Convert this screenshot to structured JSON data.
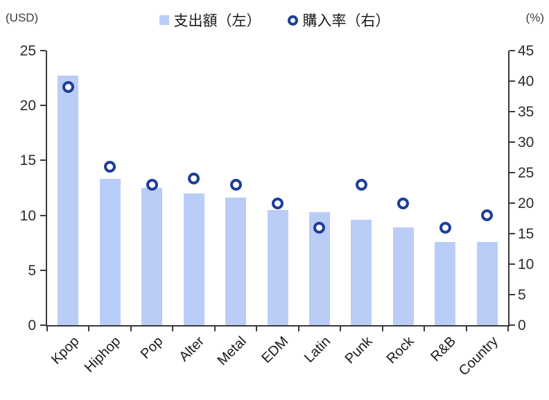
{
  "units": {
    "left": "(USD)",
    "right": "(%)"
  },
  "legend": [
    {
      "label": "支出額（左）",
      "marker": "bar-square"
    },
    {
      "label": "購入率（右）",
      "marker": "rate-ring"
    }
  ],
  "colors": {
    "bar": "#B9CDF7",
    "ring": "#1F3D99",
    "axis": "#3a3a3a",
    "text": "#2b2b2b"
  },
  "chart_data": {
    "type": "bar",
    "subtype": "combo-bar-scatter-dual-axis",
    "categories": [
      "Kpop",
      "Hiphop",
      "Pop",
      "Alter",
      "Metal",
      "EDM",
      "Latin",
      "Punk",
      "Rock",
      "R&B",
      "Country"
    ],
    "series": [
      {
        "name": "支出額（左）",
        "type": "bar",
        "axis": "left",
        "values": [
          22.7,
          13.3,
          12.5,
          12.0,
          11.6,
          10.5,
          10.3,
          9.6,
          8.9,
          7.6,
          7.6
        ]
      },
      {
        "name": "購入率（右）",
        "type": "scatter",
        "axis": "right",
        "values": [
          39,
          26,
          23,
          24,
          23,
          20,
          16,
          23,
          20,
          16,
          18
        ]
      }
    ],
    "left_axis": {
      "unit": "(USD)",
      "min": 0,
      "max": 25,
      "ticks": [
        0,
        5,
        10,
        15,
        20,
        25
      ]
    },
    "right_axis": {
      "unit": "(%)",
      "min": 0,
      "max": 45,
      "ticks": [
        0,
        5,
        10,
        15,
        20,
        25,
        30,
        35,
        40,
        45
      ]
    },
    "legend_position": "top-center",
    "grid": false,
    "x_label_rotation_deg": -45
  }
}
